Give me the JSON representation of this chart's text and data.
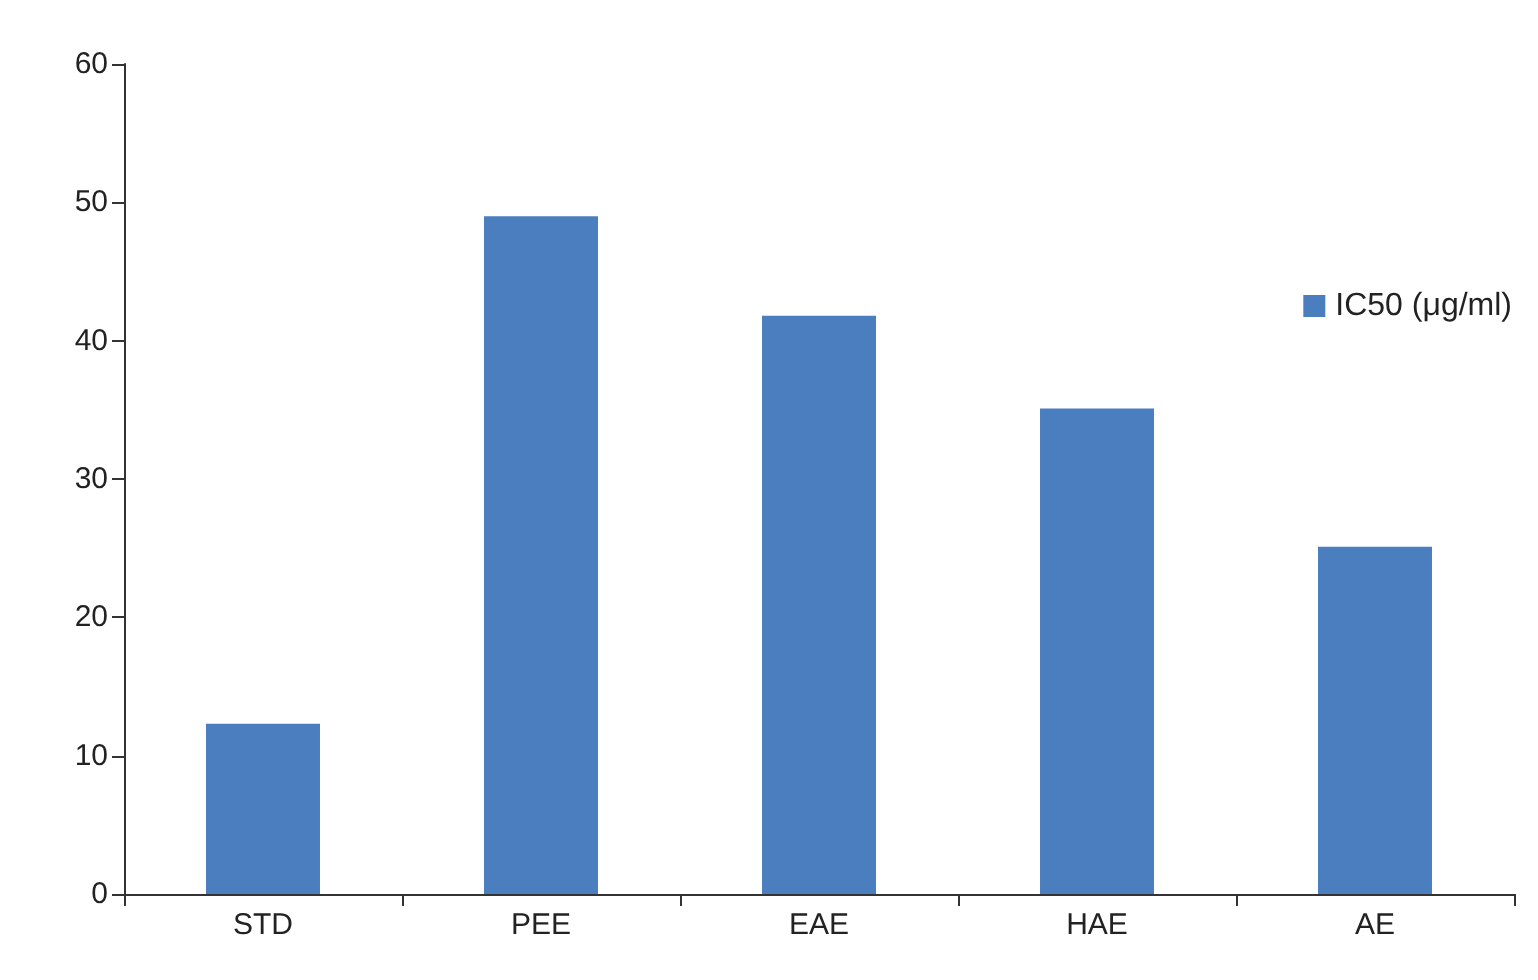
{
  "chart_data": {
    "type": "bar",
    "categories": [
      "STD",
      "PEE",
      "EAE",
      "HAE",
      "AE"
    ],
    "series": [
      {
        "name": "IC50 (μg/ml)",
        "color": "#4a7ebf",
        "values": [
          12.3,
          49,
          41.8,
          35.1,
          25.1
        ]
      }
    ],
    "ylim": [
      0,
      60
    ],
    "yticks": [
      0,
      10,
      20,
      30,
      40,
      50,
      60
    ],
    "grid": false,
    "legend": "right"
  }
}
